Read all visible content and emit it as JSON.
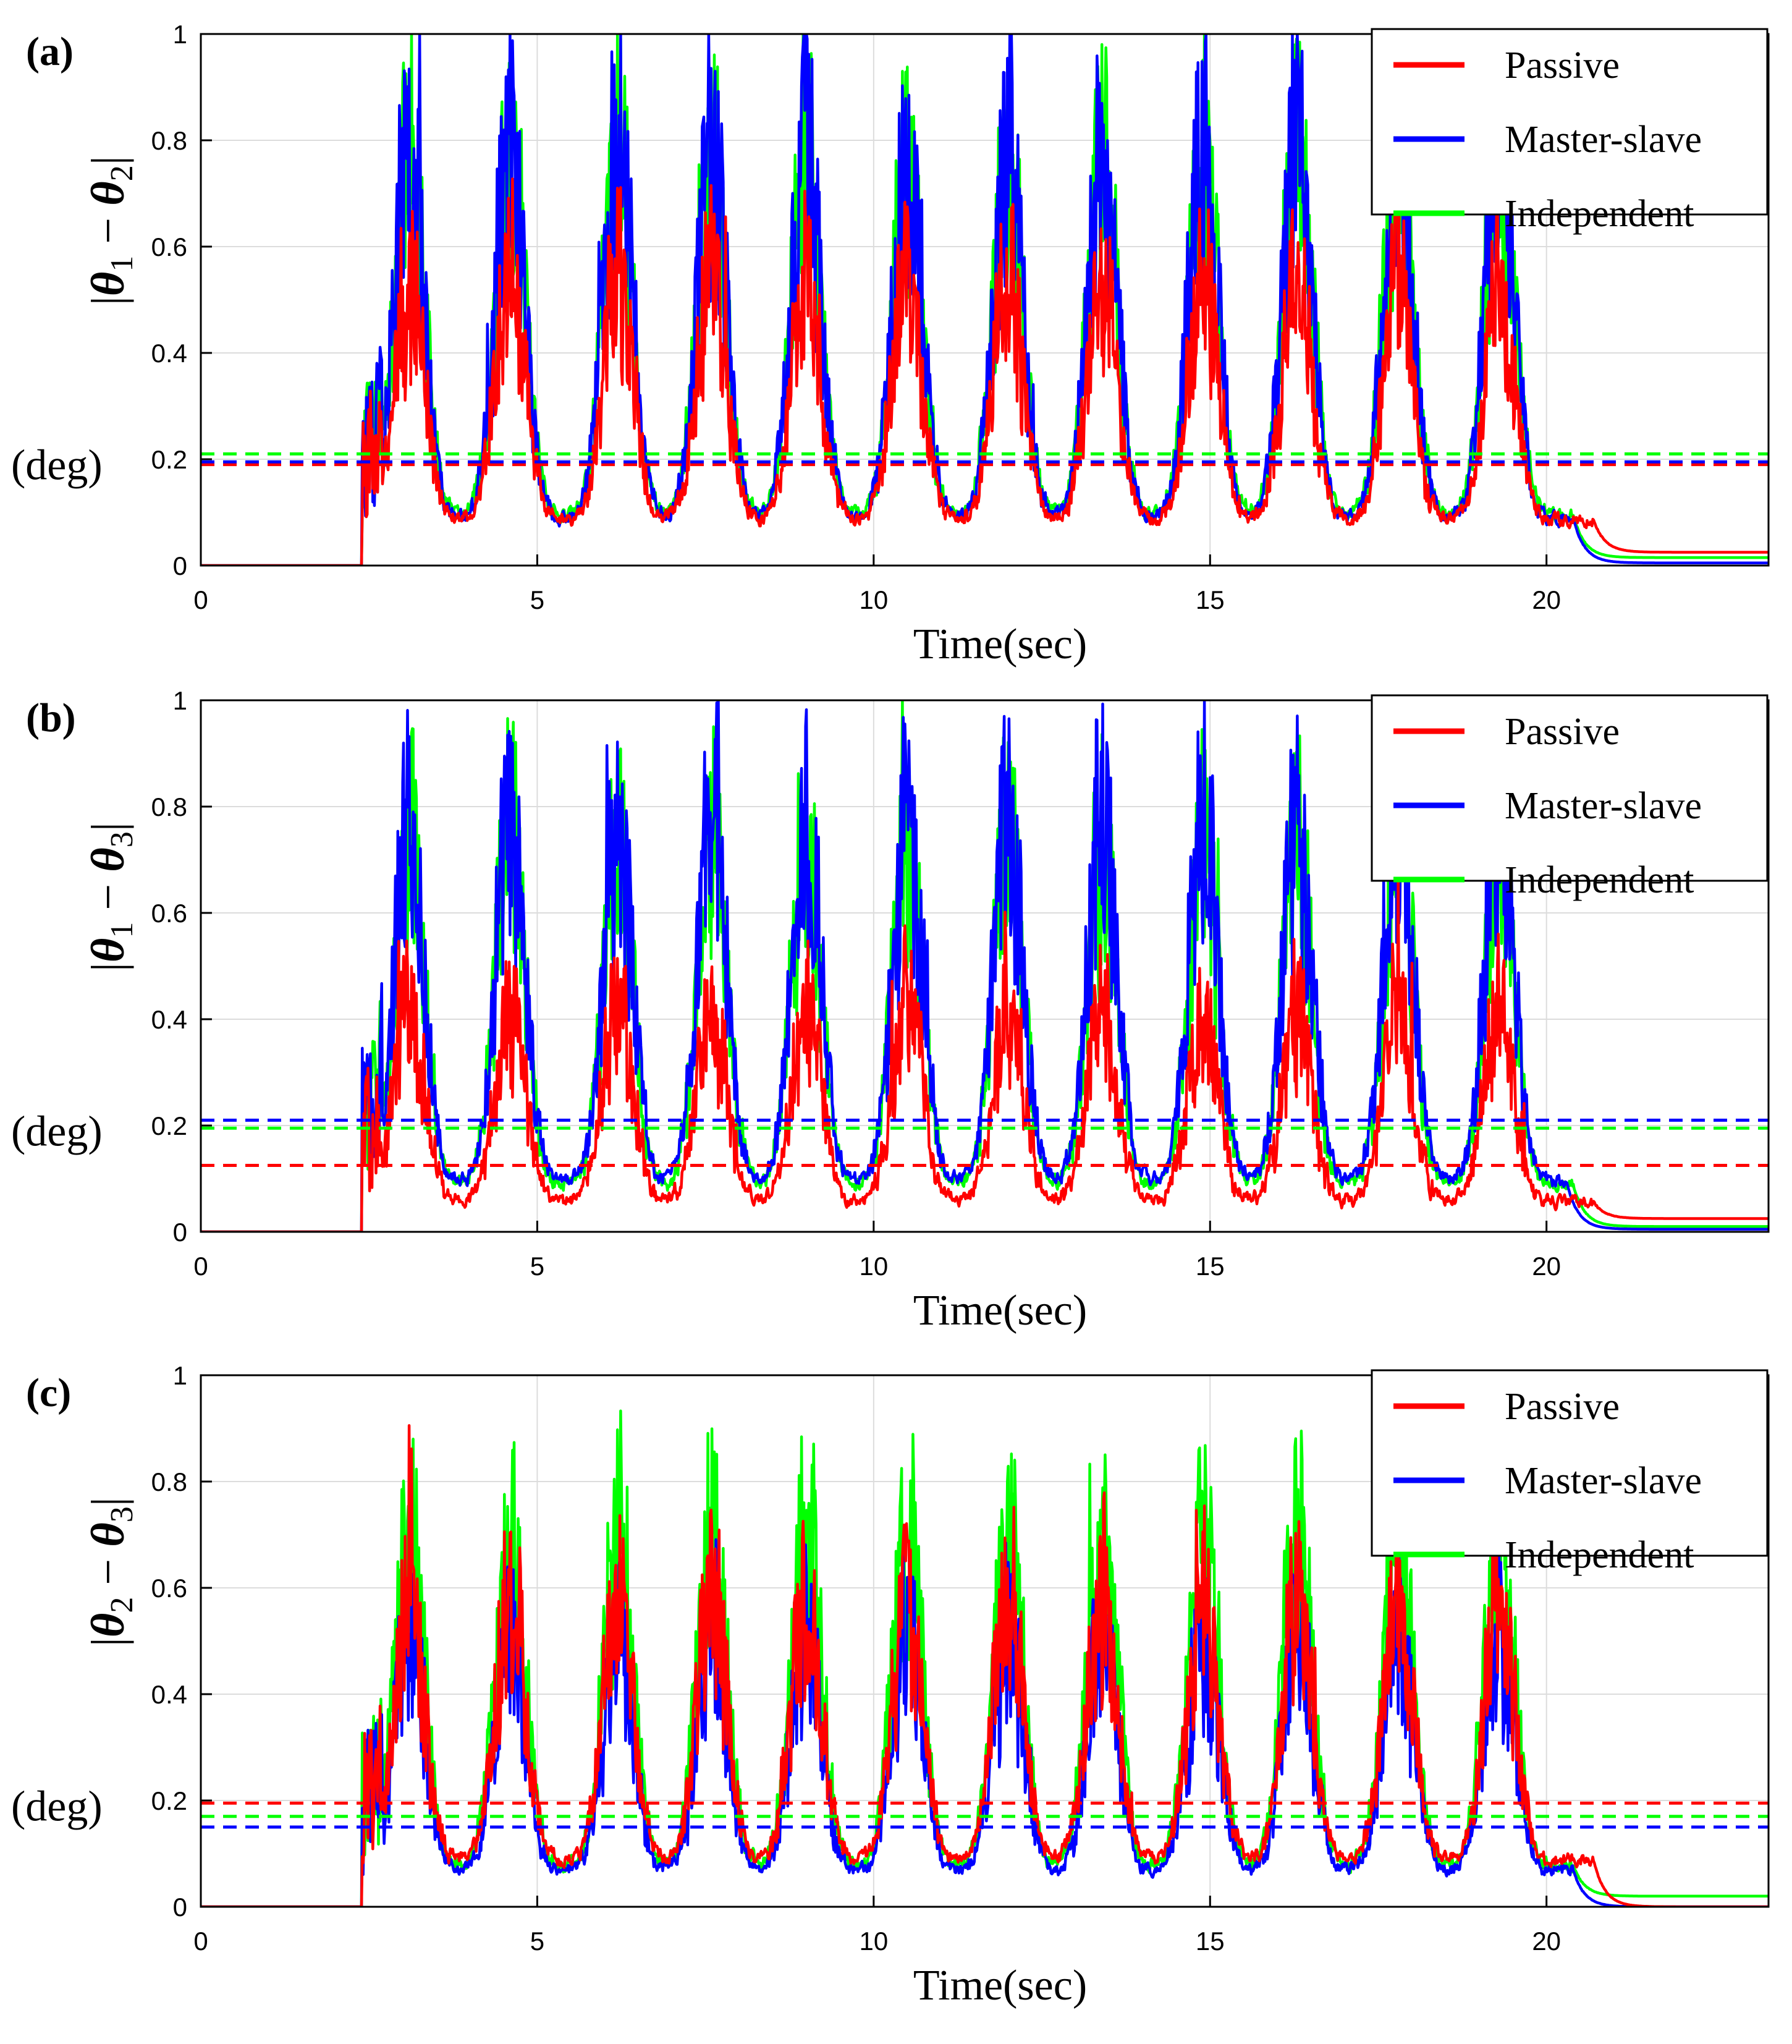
{
  "chart_data": [
    {
      "type": "line",
      "panel_label": "(a)",
      "ylabel_parts": [
        "|",
        "θ",
        "1",
        " − ",
        "θ",
        "2",
        "|"
      ],
      "yunit": "(deg)",
      "xlabel": "Time(sec)",
      "xlim": [
        0,
        23.3
      ],
      "ylim": [
        0,
        1
      ],
      "xticks": [
        0,
        5,
        10,
        15,
        20
      ],
      "yticks": [
        0,
        0.2,
        0.4,
        0.6,
        0.8,
        1
      ],
      "xtick_labels": [
        "0",
        "5",
        "10",
        "15",
        "20"
      ],
      "ytick_labels": [
        "0",
        "0.2",
        "0.4",
        "0.6",
        "0.8",
        "1"
      ],
      "grid": true,
      "legend_position": "top-right",
      "series": [
        {
          "name": "Passive",
          "color": "#ff0000",
          "mean": 0.19,
          "onset": 2.4,
          "end": 20.7,
          "peak_scale": 0.62,
          "tail": 0.025,
          "seed": 11
        },
        {
          "name": "Master-slave",
          "color": "#0000ff",
          "mean": 0.195,
          "onset": 2.4,
          "end": 20.4,
          "peak_scale": 0.95,
          "tail": 0.005,
          "seed": 23
        },
        {
          "name": "Independent",
          "color": "#00ff00",
          "mean": 0.21,
          "onset": 2.4,
          "end": 20.4,
          "peak_scale": 0.92,
          "tail": 0.015,
          "seed": 37
        }
      ]
    },
    {
      "type": "line",
      "panel_label": "(b)",
      "ylabel_parts": [
        "|",
        "θ",
        "1",
        " − ",
        "θ",
        "3",
        "|"
      ],
      "yunit": "(deg)",
      "xlabel": "Time(sec)",
      "xlim": [
        0,
        23.3
      ],
      "ylim": [
        0,
        1
      ],
      "xticks": [
        0,
        5,
        10,
        15,
        20
      ],
      "yticks": [
        0,
        0.2,
        0.4,
        0.6,
        0.8,
        1
      ],
      "xtick_labels": [
        "0",
        "5",
        "10",
        "15",
        "20"
      ],
      "ytick_labels": [
        "0",
        "0.2",
        "0.4",
        "0.6",
        "0.8",
        "1"
      ],
      "grid": true,
      "legend_position": "top-right",
      "series": [
        {
          "name": "Passive",
          "color": "#ff0000",
          "mean": 0.125,
          "onset": 2.4,
          "end": 20.7,
          "peak_scale": 0.5,
          "tail": 0.025,
          "seed": 51
        },
        {
          "name": "Master-slave",
          "color": "#0000ff",
          "mean": 0.21,
          "onset": 2.4,
          "end": 20.3,
          "peak_scale": 0.92,
          "tail": 0.005,
          "seed": 63
        },
        {
          "name": "Independent",
          "color": "#00ff00",
          "mean": 0.195,
          "onset": 2.4,
          "end": 20.4,
          "peak_scale": 0.88,
          "tail": 0.01,
          "seed": 77
        }
      ]
    },
    {
      "type": "line",
      "panel_label": "(c)",
      "ylabel_parts": [
        "|",
        "θ",
        "2",
        " − ",
        "θ",
        "3",
        "|"
      ],
      "yunit": "(deg)",
      "xlabel": "Time(sec)",
      "xlim": [
        0,
        23.3
      ],
      "ylim": [
        0,
        1
      ],
      "xticks": [
        0,
        5,
        10,
        15,
        20
      ],
      "yticks": [
        0,
        0.2,
        0.4,
        0.6,
        0.8,
        1
      ],
      "xtick_labels": [
        "0",
        "5",
        "10",
        "15",
        "20"
      ],
      "ytick_labels": [
        "0",
        "0.2",
        "0.4",
        "0.6",
        "0.8",
        "1"
      ],
      "grid": true,
      "legend_position": "top-right",
      "series": [
        {
          "name": "Passive",
          "color": "#ff0000",
          "mean": 0.195,
          "onset": 2.4,
          "end": 20.7,
          "peak_scale": 0.68,
          "tail": 0.0,
          "seed": 91
        },
        {
          "name": "Master-slave",
          "color": "#0000ff",
          "mean": 0.15,
          "onset": 2.4,
          "end": 20.4,
          "peak_scale": 0.6,
          "tail": 0.0,
          "seed": 103
        },
        {
          "name": "Independent",
          "color": "#00ff00",
          "mean": 0.17,
          "onset": 2.4,
          "end": 20.4,
          "peak_scale": 0.85,
          "tail": 0.02,
          "seed": 117
        }
      ]
    }
  ]
}
